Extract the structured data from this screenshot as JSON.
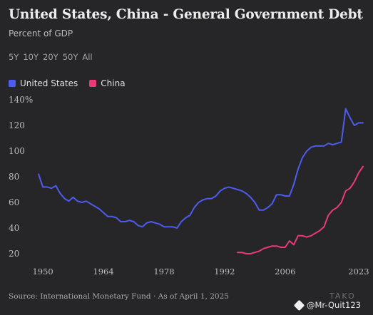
{
  "header": {
    "title": "United States, China - General Government Debt",
    "subtitle": "Percent of GDP",
    "menu_icon": "vertical-dots-icon"
  },
  "ranges": [
    "5Y",
    "10Y",
    "20Y",
    "50Y",
    "All"
  ],
  "legend": [
    {
      "label": "United States",
      "color": "#4c5cf0"
    },
    {
      "label": "China",
      "color": "#ec3a78"
    }
  ],
  "footer": {
    "source": "Source: International Monetary Fund · As of April 1, 2025",
    "brand": "TAKO",
    "watermark": "@Mr-Quit123"
  },
  "chart_data": {
    "type": "line",
    "title": "United States, China - General Government Debt",
    "ylabel": "Percent of GDP",
    "xlim": [
      1948,
      2024.5
    ],
    "ylim": [
      15,
      140
    ],
    "x_ticks": [
      1950,
      1964,
      1978,
      1992,
      2006,
      2023
    ],
    "y_ticks": [
      20,
      40,
      60,
      80,
      100,
      120,
      140
    ],
    "y_tick_labels": [
      "20",
      "40",
      "60",
      "80",
      "100",
      "120",
      "140%"
    ],
    "series": [
      {
        "name": "United States",
        "color": "#4c5cf0",
        "x": [
          1949,
          1950,
          1951,
          1952,
          1953,
          1954,
          1955,
          1956,
          1957,
          1958,
          1959,
          1960,
          1961,
          1962,
          1963,
          1964,
          1965,
          1966,
          1967,
          1968,
          1969,
          1970,
          1971,
          1972,
          1973,
          1974,
          1975,
          1976,
          1977,
          1978,
          1979,
          1980,
          1981,
          1982,
          1983,
          1984,
          1985,
          1986,
          1987,
          1988,
          1989,
          1990,
          1991,
          1992,
          1993,
          1994,
          1995,
          1996,
          1997,
          1998,
          1999,
          2000,
          2001,
          2002,
          2003,
          2004,
          2005,
          2006,
          2007,
          2008,
          2009,
          2010,
          2011,
          2012,
          2013,
          2014,
          2015,
          2016,
          2017,
          2018,
          2019,
          2020,
          2021,
          2022,
          2023,
          2024
        ],
        "values": [
          82,
          72,
          72,
          71,
          73,
          67,
          63,
          61,
          64,
          61,
          60,
          61,
          59,
          57,
          55,
          52,
          49,
          49,
          48,
          45,
          45,
          46,
          45,
          42,
          41,
          44,
          45,
          44,
          43,
          41,
          41,
          41,
          40,
          45,
          48,
          50,
          56,
          60,
          62,
          63,
          63,
          65,
          69,
          71,
          72,
          71,
          70,
          69,
          67,
          64,
          60,
          54,
          54,
          56,
          59,
          66,
          66,
          65,
          65,
          74,
          86,
          95,
          100,
          103,
          104,
          104,
          104,
          106,
          105,
          106,
          107,
          133,
          126,
          120,
          122,
          122
        ]
      },
      {
        "name": "China",
        "color": "#ec3a78",
        "x": [
          1995,
          1996,
          1997,
          1998,
          1999,
          2000,
          2001,
          2002,
          2003,
          2004,
          2005,
          2006,
          2007,
          2008,
          2009,
          2010,
          2011,
          2012,
          2013,
          2014,
          2015,
          2016,
          2017,
          2018,
          2019,
          2020,
          2021,
          2022,
          2023,
          2024
        ],
        "values": [
          21,
          21,
          20,
          20,
          21,
          22,
          24,
          25,
          26,
          26,
          25,
          25,
          30,
          27,
          34,
          34,
          33,
          34,
          36,
          38,
          41,
          50,
          54,
          56,
          60,
          69,
          71,
          76,
          83,
          88
        ]
      }
    ],
    "grid": false,
    "legend_position": "top-left"
  }
}
